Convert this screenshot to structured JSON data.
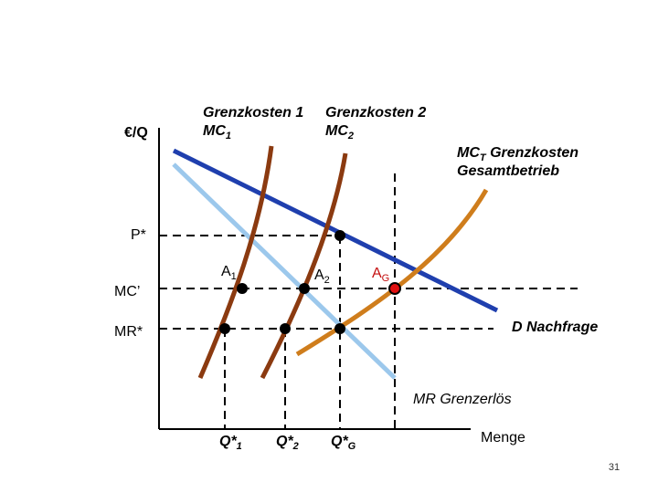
{
  "axes": {
    "y_label": "€/Q",
    "x_label": "Menge"
  },
  "price_labels": {
    "p_star": "P*",
    "mc_prime": "MC’",
    "mr_star": "MR*"
  },
  "curve_labels": {
    "mc1_line1": "Grenzkosten 1",
    "mc1_base": "MC",
    "mc1_sub": "1",
    "mc2_line1": "Grenzkosten 2",
    "mc2_base": "MC",
    "mc2_sub": "2",
    "mct_base": "MC",
    "mct_sub": "T",
    "mct_rest": " Grenzkosten",
    "mct_line2": "Gesamtbetrieb",
    "demand": "D Nachfrage",
    "mr": "MR Grenzerlös"
  },
  "points": {
    "a1_base": "A",
    "a1_sub": "1",
    "a2_base": "A",
    "a2_sub": "2",
    "ag_base": "A",
    "ag_sub": "G"
  },
  "quantity_labels": {
    "q1_base": "Q*",
    "q1_sub": "1",
    "q2_base": "Q*",
    "q2_sub": "2",
    "qg_base": "Q*",
    "qg_sub": "G"
  },
  "page_number": "31",
  "colors": {
    "demand": "#1f3fae",
    "mr": "#9cc8ec",
    "mc_firm": "#8b3a10",
    "mc_total": "#cf7d1c",
    "dot": "#000000",
    "highlight_dot": "#e01010"
  }
}
